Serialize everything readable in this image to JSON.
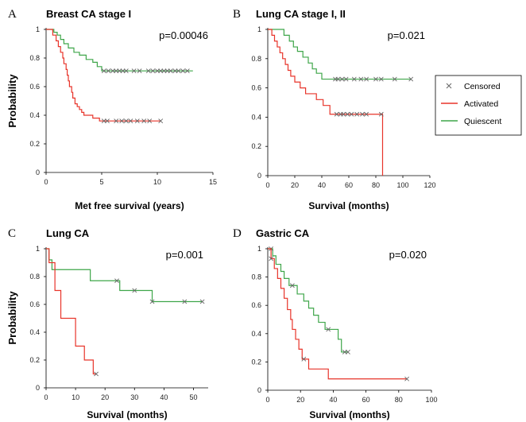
{
  "colors": {
    "activated": "#e8342a",
    "quiescent": "#3fa64a",
    "censor": "#666666",
    "axis": "#000000"
  },
  "legend": [
    {
      "key": "censored",
      "label": "Censored"
    },
    {
      "key": "activated",
      "label": "Activated"
    },
    {
      "key": "quiescent",
      "label": "Quiescent"
    }
  ],
  "chart_data": [
    {
      "id": "A",
      "panel_label": "A",
      "type": "line",
      "title": "Breast CA stage I",
      "xlabel": "Met free survival (years)",
      "ylabel": "Probability",
      "pvalue": "p=0.00046",
      "xlim": [
        0,
        15
      ],
      "ylim": [
        0,
        1
      ],
      "x_ticks": [
        "0",
        "5",
        "10",
        "15"
      ],
      "y_ticks": [
        "0",
        "0.2",
        "0.4",
        "0.6",
        "0.8",
        "1"
      ],
      "series": [
        {
          "name": "Quiescent",
          "steps": [
            [
              0,
              1
            ],
            [
              0.7,
              0.98
            ],
            [
              1.0,
              0.96
            ],
            [
              1.3,
              0.93
            ],
            [
              1.6,
              0.9
            ],
            [
              2.0,
              0.87
            ],
            [
              2.5,
              0.84
            ],
            [
              3.0,
              0.82
            ],
            [
              3.6,
              0.79
            ],
            [
              4.2,
              0.77
            ],
            [
              4.6,
              0.74
            ],
            [
              5.0,
              0.71
            ]
          ],
          "end": 13.2,
          "censored": [
            5.2,
            5.6,
            6.0,
            6.3,
            6.6,
            6.9,
            7.2,
            7.9,
            8.4,
            9.2,
            9.6,
            10.0,
            10.3,
            10.6,
            10.9,
            11.2,
            11.6,
            11.9,
            12.3,
            12.7
          ]
        },
        {
          "name": "Activated",
          "steps": [
            [
              0,
              1
            ],
            [
              0.6,
              0.96
            ],
            [
              0.9,
              0.92
            ],
            [
              1.1,
              0.88
            ],
            [
              1.3,
              0.84
            ],
            [
              1.5,
              0.8
            ],
            [
              1.6,
              0.76
            ],
            [
              1.8,
              0.72
            ],
            [
              1.9,
              0.68
            ],
            [
              2.0,
              0.64
            ],
            [
              2.1,
              0.6
            ],
            [
              2.3,
              0.56
            ],
            [
              2.4,
              0.52
            ],
            [
              2.6,
              0.48
            ],
            [
              2.8,
              0.46
            ],
            [
              3.0,
              0.44
            ],
            [
              3.2,
              0.42
            ],
            [
              3.4,
              0.4
            ],
            [
              4.2,
              0.38
            ],
            [
              4.8,
              0.36
            ]
          ],
          "end": 10.3,
          "censored": [
            5.2,
            5.5,
            6.3,
            6.8,
            7.2,
            7.6,
            8.2,
            8.8,
            9.3,
            10.3
          ]
        }
      ]
    },
    {
      "id": "B",
      "panel_label": "B",
      "type": "line",
      "title": "Lung CA stage I, II",
      "xlabel": "Survival (months)",
      "ylabel": "",
      "pvalue": "p=0.021",
      "xlim": [
        0,
        120
      ],
      "ylim": [
        0,
        1
      ],
      "x_ticks": [
        "0",
        "20",
        "40",
        "60",
        "80",
        "100",
        "120"
      ],
      "y_ticks": [
        "0",
        "0.2",
        "0.4",
        "0.6",
        "0.8",
        "1"
      ],
      "series": [
        {
          "name": "Quiescent",
          "steps": [
            [
              0,
              1
            ],
            [
              12,
              0.96
            ],
            [
              16,
              0.92
            ],
            [
              19,
              0.88
            ],
            [
              22,
              0.85
            ],
            [
              26,
              0.81
            ],
            [
              30,
              0.77
            ],
            [
              33,
              0.73
            ],
            [
              36,
              0.7
            ],
            [
              40,
              0.66
            ]
          ],
          "end": 106,
          "censored": [
            50,
            52,
            55,
            58,
            64,
            69,
            73,
            80,
            84,
            94,
            106
          ]
        },
        {
          "name": "Activated",
          "steps": [
            [
              0,
              1
            ],
            [
              3,
              0.96
            ],
            [
              5,
              0.92
            ],
            [
              7,
              0.88
            ],
            [
              9,
              0.84
            ],
            [
              11,
              0.8
            ],
            [
              13,
              0.76
            ],
            [
              15,
              0.72
            ],
            [
              17,
              0.68
            ],
            [
              20,
              0.64
            ],
            [
              24,
              0.6
            ],
            [
              28,
              0.56
            ],
            [
              36,
              0.52
            ],
            [
              41,
              0.48
            ],
            [
              46,
              0.42
            ]
          ],
          "drop_to_zero_at": 85,
          "censored": [
            51,
            54,
            56,
            59,
            62,
            66,
            70,
            73,
            84
          ]
        }
      ]
    },
    {
      "id": "C",
      "panel_label": "C",
      "type": "line",
      "title": "Lung CA",
      "xlabel": "Survival (months)",
      "ylabel": "Probability",
      "pvalue": "p=0.001",
      "xlim": [
        0,
        55
      ],
      "ylim": [
        0,
        1
      ],
      "x_ticks": [
        "0",
        "10",
        "20",
        "30",
        "40",
        "50"
      ],
      "y_ticks": [
        "0",
        "0.2",
        "0.4",
        "0.6",
        "0.8",
        "1"
      ],
      "series": [
        {
          "name": "Quiescent",
          "steps": [
            [
              0,
              1
            ],
            [
              1,
              0.92
            ],
            [
              2,
              0.85
            ],
            [
              15,
              0.77
            ],
            [
              25,
              0.7
            ],
            [
              36,
              0.62
            ]
          ],
          "end": 53,
          "censored": [
            24,
            30,
            36,
            47,
            53
          ]
        },
        {
          "name": "Activated",
          "steps": [
            [
              0,
              1
            ],
            [
              1,
              0.9
            ],
            [
              3,
              0.7
            ],
            [
              5,
              0.5
            ],
            [
              10,
              0.3
            ],
            [
              13,
              0.2
            ],
            [
              16,
              0.1
            ]
          ],
          "end": 17,
          "censored": [
            17
          ]
        }
      ]
    },
    {
      "id": "D",
      "panel_label": "D",
      "type": "line",
      "title": "Gastric CA",
      "xlabel": "Survival (months)",
      "ylabel": "",
      "pvalue": "p=0.020",
      "xlim": [
        0,
        100
      ],
      "ylim": [
        0,
        1
      ],
      "x_ticks": [
        "0",
        "20",
        "40",
        "60",
        "80",
        "100"
      ],
      "y_ticks": [
        "0",
        "0.2",
        "0.4",
        "0.6",
        "0.8",
        "1"
      ],
      "series": [
        {
          "name": "Quiescent",
          "steps": [
            [
              0,
              1
            ],
            [
              3,
              0.95
            ],
            [
              5,
              0.89
            ],
            [
              8,
              0.84
            ],
            [
              10,
              0.79
            ],
            [
              13,
              0.74
            ],
            [
              18,
              0.68
            ],
            [
              22,
              0.63
            ],
            [
              25,
              0.58
            ],
            [
              28,
              0.53
            ],
            [
              31,
              0.48
            ],
            [
              35,
              0.43
            ],
            [
              43,
              0.36
            ],
            [
              45,
              0.27
            ]
          ],
          "end": 49,
          "censored": [
            2,
            15,
            37,
            47,
            49
          ]
        },
        {
          "name": "Activated",
          "steps": [
            [
              0,
              1
            ],
            [
              2,
              0.93
            ],
            [
              4,
              0.86
            ],
            [
              6,
              0.79
            ],
            [
              8,
              0.72
            ],
            [
              10,
              0.65
            ],
            [
              12,
              0.57
            ],
            [
              14,
              0.5
            ],
            [
              15,
              0.43
            ],
            [
              17,
              0.36
            ],
            [
              19,
              0.29
            ],
            [
              21,
              0.22
            ],
            [
              25,
              0.15
            ],
            [
              37,
              0.08
            ]
          ],
          "end": 85,
          "censored": [
            2,
            22,
            85
          ]
        }
      ]
    }
  ]
}
